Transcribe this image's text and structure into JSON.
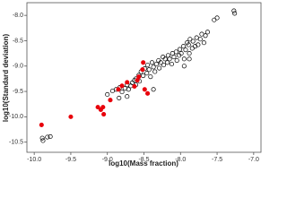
{
  "chart_data": {
    "type": "scatter",
    "x_label": "log10(Mass fraction)",
    "y_label": "log10(Standard deviation)",
    "xlim": [
      -10.1,
      -6.9
    ],
    "ylim": [
      -10.7,
      -7.75
    ],
    "xticks": [
      {
        "value": -10,
        "label": "-10.0"
      },
      -9.5,
      {
        "value": -9,
        "label": "-9.0"
      },
      -8.5,
      {
        "value": -8,
        "label": "-8.0"
      },
      -7.5,
      {
        "value": -7,
        "label": "-7.0"
      }
    ],
    "yticks": [
      {
        "value": -8,
        "label": "-8.0"
      },
      -8.5,
      {
        "value": -9,
        "label": "-9.0"
      },
      -9.5,
      {
        "value": -10,
        "label": "-10.0"
      },
      -10.5
    ],
    "series": [
      {
        "color": "#000000",
        "filled": false,
        "x": [
          -9.89,
          -9.88,
          -9.82,
          -9.78,
          -9.0,
          -8.93,
          -8.88,
          -8.83,
          -8.8,
          -8.76,
          -8.73,
          -8.71,
          -8.68,
          -8.66,
          -8.63,
          -8.61,
          -8.61,
          -8.57,
          -8.56,
          -8.54,
          -8.51,
          -8.49,
          -8.46,
          -8.45,
          -8.43,
          -8.41,
          -8.39,
          -8.37,
          -8.35,
          -8.33,
          -8.3,
          -8.29,
          -8.27,
          -8.24,
          -8.23,
          -8.21,
          -8.18,
          -8.17,
          -8.15,
          -8.12,
          -8.11,
          -8.09,
          -8.06,
          -8.05,
          -8.02,
          -8.01,
          -7.99,
          -7.96,
          -7.95,
          -7.93,
          -7.91,
          -7.89,
          -7.88,
          -7.87,
          -7.84,
          -7.83,
          -7.8,
          -7.78,
          -7.76,
          -7.73,
          -7.71,
          -7.68,
          -7.66,
          -7.63,
          -7.95,
          -7.88,
          -7.54,
          -7.5,
          -7.27,
          -7.26,
          -8.73,
          -8.84,
          -8.37
        ],
        "values": [
          -10.42,
          -10.47,
          -10.4,
          -10.39,
          -9.56,
          -9.49,
          -9.46,
          -9.42,
          -9.51,
          -9.44,
          -9.37,
          -9.46,
          -9.39,
          -9.33,
          -9.28,
          -9.25,
          -9.37,
          -9.18,
          -9.3,
          -9.11,
          -9.19,
          -9.05,
          -9.14,
          -8.98,
          -9.07,
          -9.21,
          -8.93,
          -9.02,
          -9.11,
          -8.96,
          -8.89,
          -9.04,
          -8.93,
          -8.82,
          -8.98,
          -8.86,
          -8.93,
          -8.79,
          -8.86,
          -8.96,
          -8.75,
          -8.82,
          -8.72,
          -8.89,
          -8.79,
          -8.67,
          -8.75,
          -8.61,
          -8.86,
          -8.68,
          -8.54,
          -8.58,
          -8.75,
          -8.47,
          -8.65,
          -8.51,
          -8.61,
          -8.44,
          -8.58,
          -8.47,
          -8.37,
          -8.54,
          -8.4,
          -8.33,
          -9.0,
          -8.86,
          -8.09,
          -8.05,
          -7.91,
          -7.96,
          -9.6,
          -9.63,
          -9.46
        ]
      },
      {
        "color": "#e8000b",
        "filled": true,
        "x": [
          -9.9,
          -9.5,
          -9.13,
          -9.09,
          -9.06,
          -9.05,
          -8.96,
          -8.85,
          -8.8,
          -8.73,
          -8.63,
          -8.59,
          -8.57,
          -8.52,
          -8.49,
          -8.45,
          -8.51
        ],
        "values": [
          -10.16,
          -10.0,
          -9.81,
          -9.86,
          -9.81,
          -9.95,
          -9.67,
          -9.46,
          -9.39,
          -9.32,
          -9.4,
          -9.28,
          -9.21,
          -9.07,
          -9.46,
          -9.54,
          -8.93
        ]
      }
    ]
  }
}
